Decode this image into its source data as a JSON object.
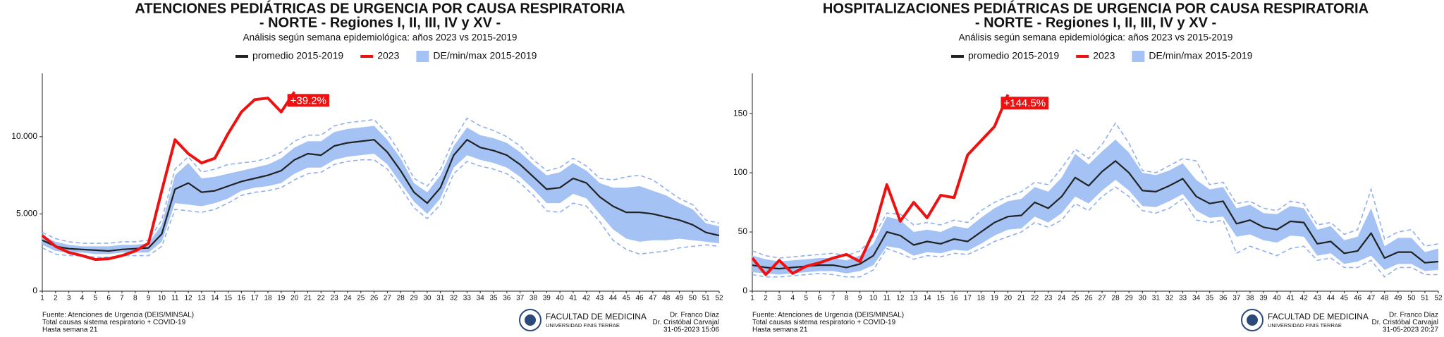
{
  "chart_data": [
    {
      "type": "line",
      "title": [
        "ATENCIONES PEDIÁTRICAS DE URGENCIA POR CAUSA RESPIRATORIA",
        "- NORTE - Regiones I, II, III, IV y XV -"
      ],
      "subtitle": "Análisis según semana epidemiológica: años 2023 vs 2015-2019",
      "categories": [
        "1",
        "2",
        "3",
        "4",
        "5",
        "6",
        "7",
        "8",
        "9",
        "10",
        "11",
        "12",
        "13",
        "14",
        "15",
        "16",
        "17",
        "18",
        "19",
        "20",
        "21",
        "22",
        "23",
        "24",
        "25",
        "26",
        "27",
        "28",
        "29",
        "30",
        "31",
        "32",
        "33",
        "34",
        "35",
        "36",
        "37",
        "38",
        "39",
        "40",
        "41",
        "42",
        "43",
        "44",
        "45",
        "46",
        "47",
        "48",
        "49",
        "50",
        "51",
        "52"
      ],
      "ylim": [
        0,
        14100
      ],
      "yticks": [
        0,
        {
          "value": 5000,
          "label": "5.000"
        },
        {
          "value": 10000,
          "label": "10.000"
        }
      ],
      "grid": false,
      "series": [
        {
          "name": "promedio 2015-2019",
          "kind": "line",
          "color": "#222222",
          "values": [
            3300,
            2900,
            2750,
            2700,
            2650,
            2600,
            2700,
            2750,
            2800,
            3700,
            6600,
            7000,
            6400,
            6500,
            6800,
            7100,
            7300,
            7500,
            7800,
            8500,
            8900,
            8800,
            9400,
            9600,
            9700,
            9800,
            9000,
            7800,
            6400,
            5700,
            6700,
            8800,
            9800,
            9300,
            9100,
            8800,
            8200,
            7400,
            6600,
            6700,
            7300,
            7000,
            6100,
            5500,
            5100,
            5100,
            5000,
            4800,
            4600,
            4300,
            3800,
            3600
          ]
        },
        {
          "name": "2023",
          "kind": "line",
          "color": "#ee1111",
          "annotation": "+39.2%",
          "values": [
            3600,
            2900,
            2500,
            2300,
            2050,
            2100,
            2300,
            2600,
            3100,
            6500,
            9800,
            8900,
            8300,
            8600,
            10200,
            11600,
            12400,
            12500,
            11600,
            12900,
            null,
            null,
            null,
            null,
            null,
            null,
            null,
            null,
            null,
            null,
            null,
            null,
            null,
            null,
            null,
            null,
            null,
            null,
            null,
            null,
            null,
            null,
            null,
            null,
            null,
            null,
            null,
            null,
            null,
            null,
            null,
            null
          ]
        },
        {
          "name": "DE/min/max 2015-2019",
          "kind": "band",
          "color": "#a4c2f4",
          "dash_color": "#8fb0ee",
          "upper": [
            3600,
            3200,
            3000,
            2900,
            2900,
            2900,
            3000,
            3000,
            3100,
            4300,
            7500,
            8300,
            7300,
            7400,
            7600,
            7800,
            8000,
            8200,
            8600,
            9300,
            9700,
            9700,
            10300,
            10500,
            10600,
            10700,
            9800,
            8600,
            7000,
            6400,
            7500,
            9400,
            10600,
            10100,
            9900,
            9600,
            9000,
            8200,
            7500,
            7700,
            8300,
            7800,
            7000,
            6700,
            6700,
            6800,
            6500,
            6200,
            5700,
            5300,
            4400,
            4200
          ],
          "lower": [
            3000,
            2600,
            2500,
            2500,
            2400,
            2400,
            2500,
            2500,
            2500,
            3200,
            5700,
            5600,
            5500,
            5700,
            6000,
            6500,
            6700,
            6800,
            7000,
            7600,
            8000,
            8000,
            8500,
            8700,
            8800,
            8900,
            8200,
            7000,
            5800,
            5000,
            6000,
            8000,
            8800,
            8500,
            8300,
            8000,
            7400,
            6600,
            5700,
            5700,
            6300,
            6000,
            5000,
            4000,
            3400,
            3200,
            3300,
            3300,
            3400,
            3300,
            3200,
            3100
          ],
          "max": [
            3800,
            3400,
            3200,
            3100,
            3100,
            3100,
            3200,
            3200,
            3300,
            4600,
            7900,
            8700,
            7700,
            7900,
            8200,
            8300,
            8400,
            8600,
            9000,
            9700,
            10100,
            10100,
            10700,
            10900,
            11000,
            11100,
            10200,
            8900,
            7300,
            6800,
            7900,
            9800,
            11200,
            10700,
            10400,
            10000,
            9400,
            8500,
            7800,
            8000,
            8600,
            8100,
            7300,
            7200,
            7400,
            7500,
            7200,
            6600,
            6000,
            5600,
            4600,
            4400
          ],
          "min": [
            2800,
            2400,
            2300,
            2300,
            2200,
            2200,
            2300,
            2300,
            2300,
            2900,
            5300,
            5200,
            5100,
            5300,
            5700,
            6200,
            6400,
            6500,
            6700,
            7200,
            7600,
            7700,
            8200,
            8400,
            8500,
            8500,
            7900,
            6700,
            5400,
            4700,
            5600,
            7600,
            8400,
            8100,
            7900,
            7600,
            7000,
            6200,
            5200,
            5100,
            5700,
            5500,
            4500,
            3300,
            2700,
            2400,
            2500,
            2600,
            2800,
            2900,
            3000,
            2900
          ]
        }
      ],
      "footer_left": [
        "Fuente: Atenciones de Urgencia (DEIS/MINSAL)",
        "Total causas sistema respiratorio + COVID-19",
        "Hasta semana 21"
      ],
      "logo": [
        "FACULTAD DE MEDICINA",
        "UNIVERSIDAD FINIS TERRAE"
      ],
      "footer_right": [
        "Dr. Franco Díaz",
        "Dr. Cristóbal Carvajal",
        "31-05-2023 15:06"
      ]
    },
    {
      "type": "line",
      "title": [
        "HOSPITALIZACIONES PEDIÁTRICAS DE URGENCIA POR CAUSA RESPIRATORIA",
        "- NORTE - Regiones I, II, III, IV y XV -"
      ],
      "subtitle": "Análisis según semana epidemiológica: años 2023 vs 2015-2019",
      "categories": [
        "1",
        "2",
        "3",
        "4",
        "5",
        "6",
        "7",
        "8",
        "9",
        "10",
        "11",
        "12",
        "13",
        "14",
        "15",
        "16",
        "17",
        "18",
        "19",
        "20",
        "21",
        "22",
        "23",
        "24",
        "25",
        "26",
        "27",
        "28",
        "29",
        "30",
        "31",
        "32",
        "33",
        "34",
        "35",
        "36",
        "37",
        "38",
        "39",
        "40",
        "41",
        "42",
        "43",
        "44",
        "45",
        "46",
        "47",
        "48",
        "49",
        "50",
        "51",
        "52"
      ],
      "ylim": [
        0,
        184
      ],
      "yticks": [
        0,
        50,
        100,
        150
      ],
      "grid": false,
      "series": [
        {
          "name": "promedio 2015-2019",
          "kind": "line",
          "color": "#222222",
          "values": [
            22,
            20,
            19,
            20,
            21,
            22,
            22,
            20,
            23,
            30,
            50,
            47,
            39,
            42,
            40,
            44,
            42,
            50,
            58,
            63,
            64,
            75,
            70,
            80,
            96,
            89,
            101,
            110,
            100,
            85,
            84,
            89,
            95,
            80,
            74,
            76,
            57,
            60,
            54,
            52,
            59,
            58,
            40,
            42,
            32,
            34,
            49,
            28,
            33,
            33,
            24,
            25
          ]
        },
        {
          "name": "2023",
          "kind": "line",
          "color": "#ee1111",
          "annotation": "+144.5%",
          "values": [
            28,
            14,
            26,
            15,
            21,
            24,
            28,
            31,
            25,
            50,
            90,
            59,
            75,
            62,
            81,
            79,
            115,
            127,
            139,
            166,
            null,
            null,
            null,
            null,
            null,
            null,
            null,
            null,
            null,
            null,
            null,
            null,
            null,
            null,
            null,
            null,
            null,
            null,
            null,
            null,
            null,
            null,
            null,
            null,
            null,
            null,
            null,
            null,
            null,
            null,
            null,
            null
          ]
        },
        {
          "name": "DE/min/max 2015-2019",
          "kind": "band",
          "color": "#a4c2f4",
          "dash_color": "#8fb0ee",
          "upper": [
            30,
            27,
            25,
            26,
            27,
            28,
            28,
            26,
            30,
            40,
            63,
            60,
            50,
            52,
            50,
            55,
            53,
            62,
            70,
            76,
            78,
            88,
            84,
            96,
            116,
            107,
            118,
            128,
            117,
            100,
            98,
            102,
            108,
            94,
            86,
            88,
            70,
            73,
            66,
            65,
            72,
            70,
            52,
            55,
            43,
            46,
            70,
            38,
            45,
            45,
            33,
            36
          ],
          "lower": [
            16,
            15,
            14,
            15,
            16,
            17,
            17,
            15,
            17,
            22,
            38,
            36,
            30,
            33,
            32,
            35,
            34,
            40,
            47,
            52,
            53,
            63,
            58,
            66,
            80,
            74,
            85,
            94,
            85,
            72,
            71,
            76,
            82,
            68,
            62,
            63,
            46,
            48,
            43,
            41,
            47,
            46,
            30,
            32,
            23,
            25,
            30,
            18,
            23,
            23,
            17,
            18
          ],
          "max": [
            34,
            30,
            28,
            29,
            30,
            31,
            32,
            30,
            34,
            46,
            66,
            65,
            56,
            58,
            56,
            60,
            58,
            68,
            75,
            80,
            84,
            92,
            90,
            104,
            120,
            112,
            124,
            142,
            125,
            102,
            100,
            106,
            112,
            110,
            90,
            92,
            74,
            76,
            70,
            68,
            76,
            74,
            56,
            58,
            48,
            52,
            86,
            44,
            50,
            52,
            38,
            40
          ],
          "min": [
            14,
            12,
            12,
            13,
            14,
            15,
            14,
            12,
            12,
            18,
            36,
            32,
            27,
            30,
            29,
            32,
            31,
            36,
            42,
            46,
            50,
            58,
            54,
            60,
            74,
            68,
            80,
            88,
            80,
            68,
            66,
            70,
            78,
            60,
            58,
            60,
            32,
            38,
            34,
            30,
            36,
            38,
            26,
            28,
            20,
            20,
            26,
            12,
            20,
            20,
            14,
            14
          ]
        }
      ],
      "footer_left": [
        "Fuente: Atenciones de Urgencia (DEIS/MINSAL)",
        "Total causas sistema respiratorio + COVID-19",
        "Hasta semana 21"
      ],
      "logo": [
        "FACULTAD DE MEDICINA",
        "UNIVERSIDAD FINIS TERRAE"
      ],
      "footer_right": [
        "Dr. Franco Díaz",
        "Dr. Cristóbal Carvajal",
        "31-05-2023 20:27"
      ]
    }
  ]
}
